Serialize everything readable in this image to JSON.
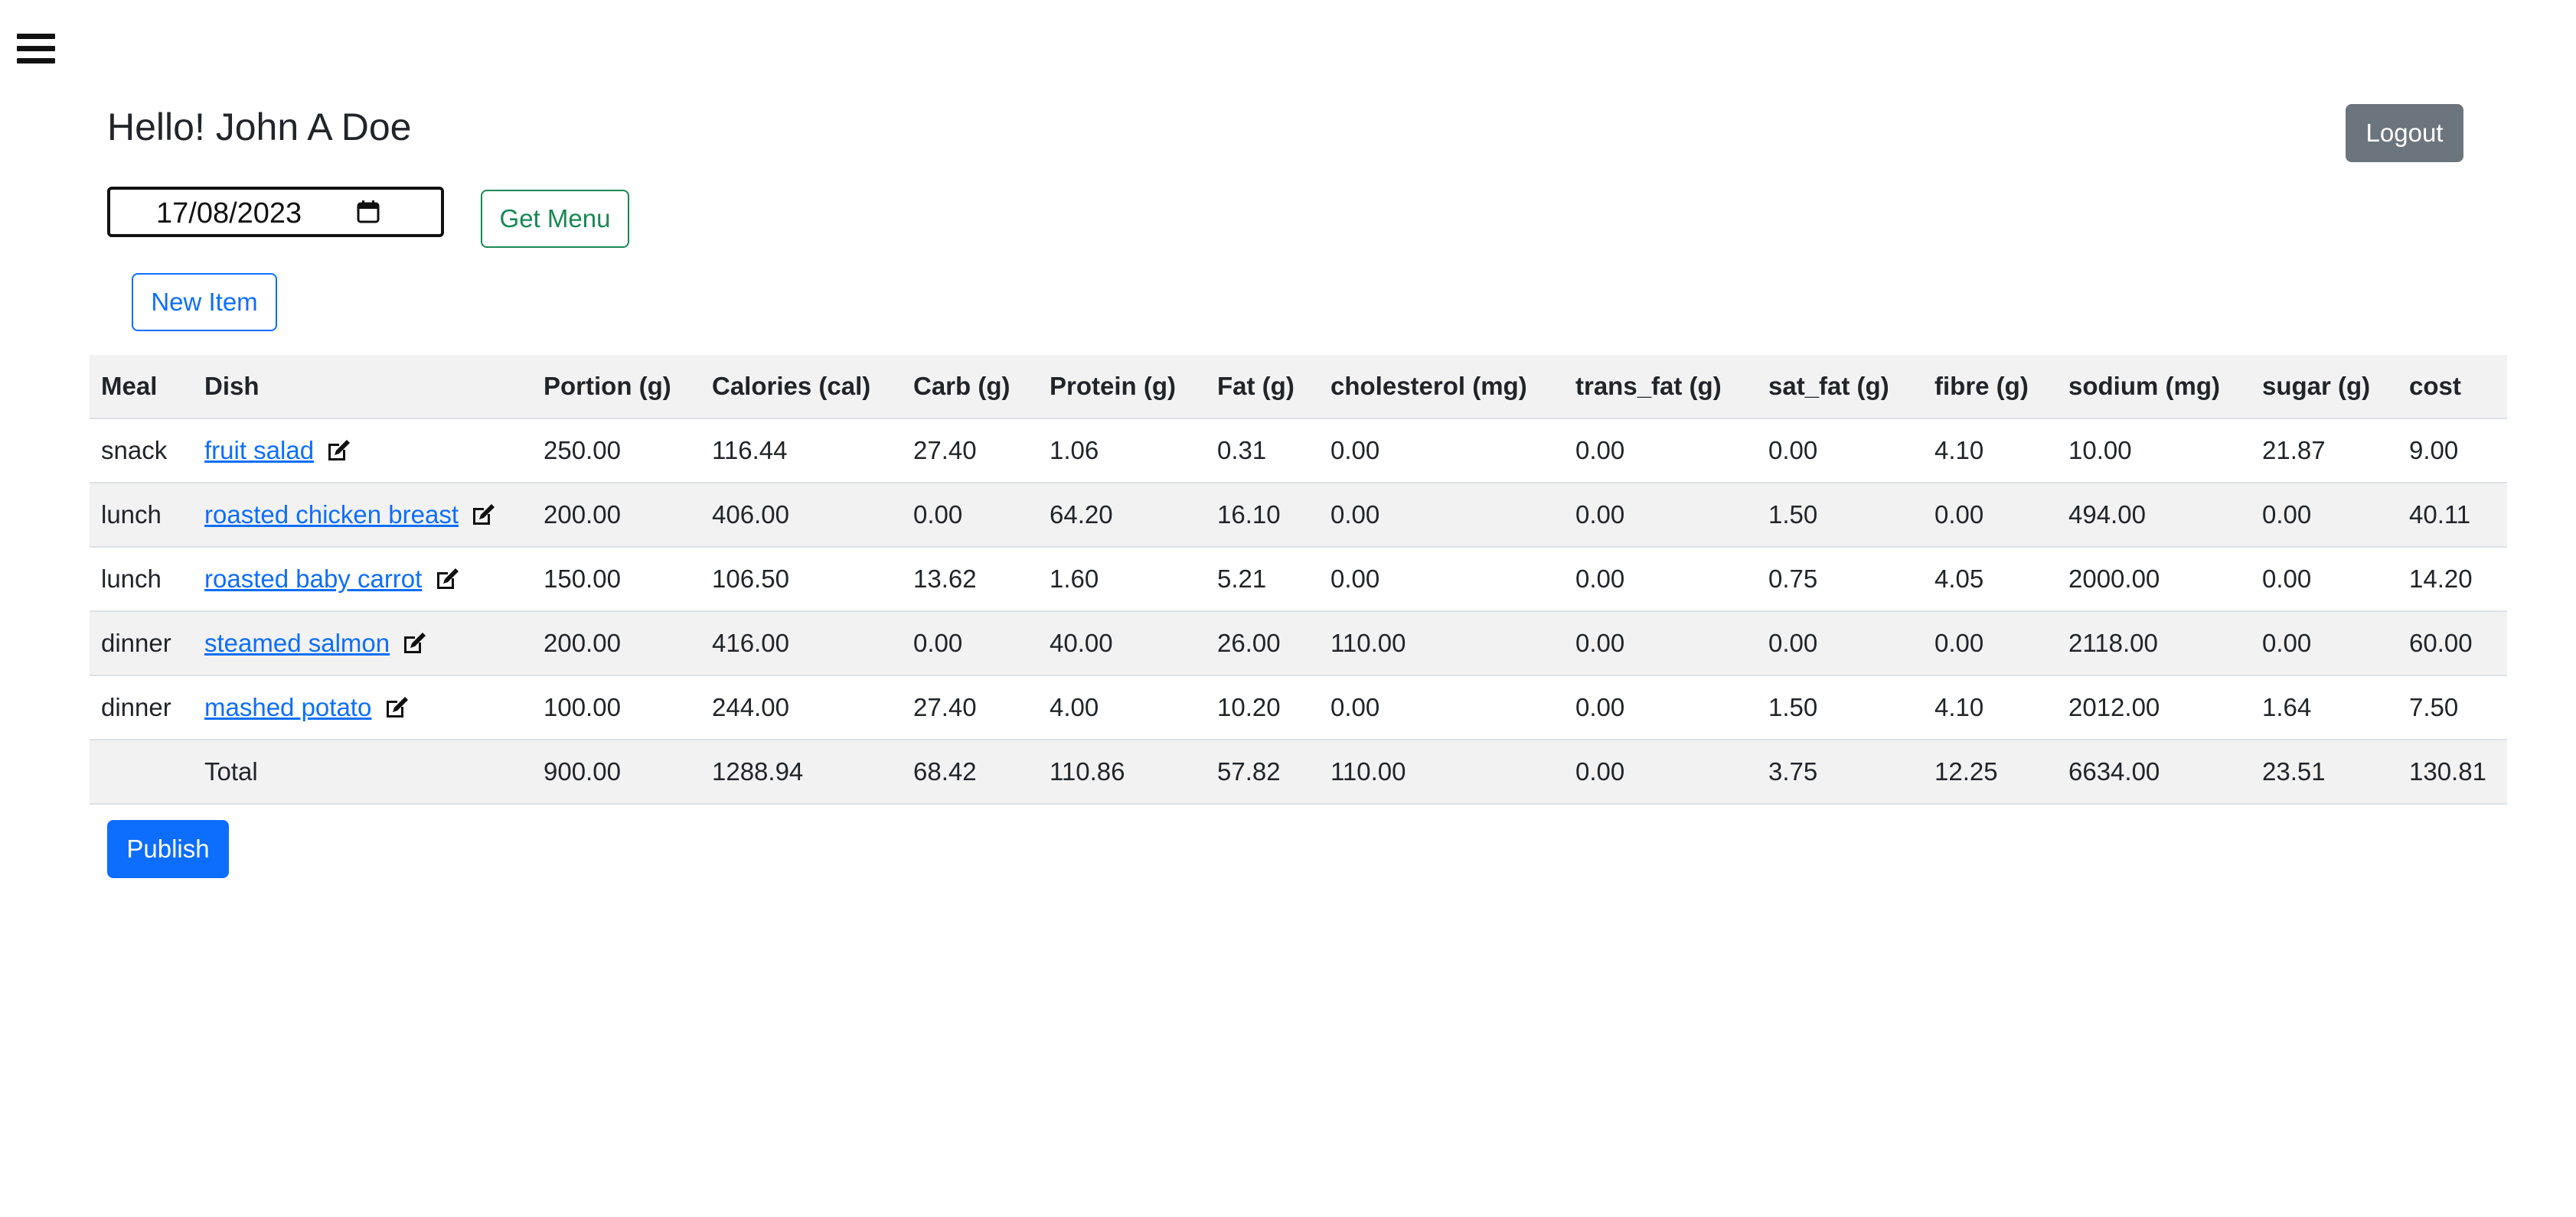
{
  "nav": {
    "menu_icon": "hamburger-menu-icon"
  },
  "header": {
    "greeting": "Hello! John A Doe",
    "logout_label": "Logout"
  },
  "controls": {
    "date_value": "17/08/2023",
    "calendar_icon": "calendar-icon",
    "get_menu_label": "Get Menu",
    "new_item_label": "New Item"
  },
  "table": {
    "columns": [
      "Meal",
      "Dish",
      "Portion (g)",
      "Calories (cal)",
      "Carb (g)",
      "Protein (g)",
      "Fat (g)",
      "cholesterol (mg)",
      "trans_fat (g)",
      "sat_fat (g)",
      "fibre (g)",
      "sodium (mg)",
      "sugar (g)",
      "cost"
    ],
    "edit_icon": "edit-icon",
    "rows": [
      {
        "meal": "snack",
        "dish": "fruit salad",
        "values": [
          "250.00",
          "116.44",
          "27.40",
          "1.06",
          "0.31",
          "0.00",
          "0.00",
          "0.00",
          "4.10",
          "10.00",
          "21.87",
          "9.00"
        ]
      },
      {
        "meal": "lunch",
        "dish": "roasted chicken breast",
        "values": [
          "200.00",
          "406.00",
          "0.00",
          "64.20",
          "16.10",
          "0.00",
          "0.00",
          "1.50",
          "0.00",
          "494.00",
          "0.00",
          "40.11"
        ]
      },
      {
        "meal": "lunch",
        "dish": "roasted baby carrot",
        "values": [
          "150.00",
          "106.50",
          "13.62",
          "1.60",
          "5.21",
          "0.00",
          "0.00",
          "0.75",
          "4.05",
          "2000.00",
          "0.00",
          "14.20"
        ]
      },
      {
        "meal": "dinner",
        "dish": "steamed salmon",
        "values": [
          "200.00",
          "416.00",
          "0.00",
          "40.00",
          "26.00",
          "110.00",
          "0.00",
          "0.00",
          "0.00",
          "2118.00",
          "0.00",
          "60.00"
        ]
      },
      {
        "meal": "dinner",
        "dish": "mashed potato",
        "values": [
          "100.00",
          "244.00",
          "27.40",
          "4.00",
          "10.20",
          "0.00",
          "0.00",
          "1.50",
          "4.10",
          "2012.00",
          "1.64",
          "7.50"
        ]
      }
    ],
    "total": {
      "label": "Total",
      "values": [
        "900.00",
        "1288.94",
        "68.42",
        "110.86",
        "57.82",
        "110.00",
        "0.00",
        "3.75",
        "12.25",
        "6634.00",
        "23.51",
        "130.81"
      ]
    }
  },
  "footer": {
    "publish_label": "Publish"
  },
  "colors": {
    "primary": "#0d6efd",
    "success": "#198754",
    "secondary": "#6c757d",
    "stripe": "#f2f2f2"
  }
}
